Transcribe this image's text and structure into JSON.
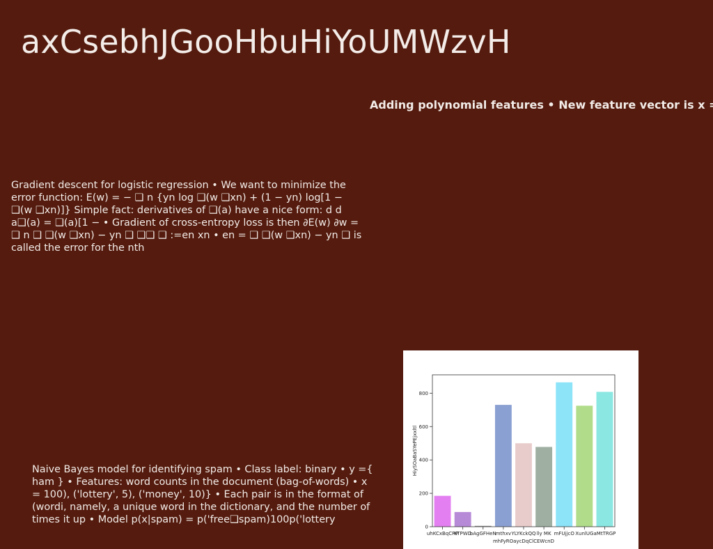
{
  "slide": {
    "title": "axCsebhJGooHbuHiYoUMWzvH",
    "subtitle": "Adding polynomial features • New feature vector is x =",
    "paragraph_1": "Gradient descent for logistic regression • We want to minimize the error function: E(w) = − ❑ n {yn log ❑(w ❑xn) + (1 − yn) log[1 − ❑(w ❑xn)]} Simple fact: derivatives of ❑(a) have a nice form: d d a❑(a) = ❑(a)[1 − • Gradient of cross-entropy loss is then ∂E(w) ∂w = ❑ n ❑ ❑(w ❑xn) − yn ❑ ❑❑ ❑ :=en xn • en = ❑ ❑(w ❑xn) − yn ❑ is called the error for the nth",
    "paragraph_2": "Naive Bayes model for identifying spam • Class label: binary • y ={ ham } • Features: word counts in the document (bag-of-words) • x = 100), ('lottery', 5), ('money', 10)} • Each pair is in the format of (wordi, namely, a unique word in the dictionary, and the number of times it up • Model p(x|spam) = p('free❑spam)100p('lottery"
  },
  "colors": {
    "background": "#541b0e",
    "text": "#f3ece8",
    "chart_background": "#ffffff"
  },
  "chart_data": {
    "type": "bar",
    "title": "",
    "xlabel": "mhFyROaycDqClCEWcnD",
    "ylabel": "HiySOaBaSYePEjxxltl",
    "categories": [
      "uhKCxBqCRP",
      "KTPWD",
      "bAgGFHeN",
      "mthxv",
      "YLYKckQQ",
      "lly MK",
      "mFUjjcO",
      "XunlUG",
      "aMtTRGP"
    ],
    "values": [
      185,
      88,
      5,
      730,
      500,
      478,
      865,
      725,
      808
    ],
    "colors": [
      "#e37ff0",
      "#b78ad8",
      "#8c8c8c",
      "#8aa0d3",
      "#e8cccb",
      "#9fb0a2",
      "#8de3f8",
      "#b1dd8a",
      "#8ae7e2"
    ],
    "ylim": [
      0,
      910
    ],
    "yticks": [
      0,
      200,
      400,
      600,
      800
    ],
    "grid": false,
    "legend": "none"
  }
}
